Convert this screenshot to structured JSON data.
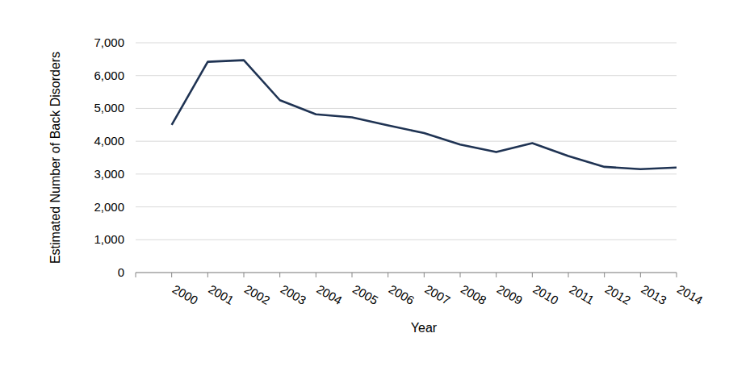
{
  "chart_data": {
    "type": "line",
    "x_label": "Year",
    "y_label": "Estimated Number of Back Disorders",
    "categories": [
      "2000",
      "2001",
      "2002",
      "2003",
      "2004",
      "2005",
      "2006",
      "2007",
      "2008",
      "2009",
      "2010",
      "2011",
      "2012",
      "2013",
      "2014"
    ],
    "values": [
      4500,
      6420,
      6470,
      5250,
      4820,
      4730,
      4480,
      4250,
      3900,
      3670,
      3940,
      3550,
      3220,
      3150,
      3200
    ],
    "color": "#1f3353",
    "ylim": [
      0,
      7000
    ],
    "yticks": [
      0,
      {
        "value": 1000,
        "label": "1,000"
      },
      {
        "value": 2000,
        "label": "2,000"
      },
      {
        "value": 3000,
        "label": "3,000"
      },
      {
        "value": 4000,
        "label": "4,000"
      },
      {
        "value": 5000,
        "label": "5,000"
      },
      {
        "value": 6000,
        "label": "6,000"
      },
      {
        "value": 7000,
        "label": "7,000"
      }
    ],
    "grid": true
  }
}
